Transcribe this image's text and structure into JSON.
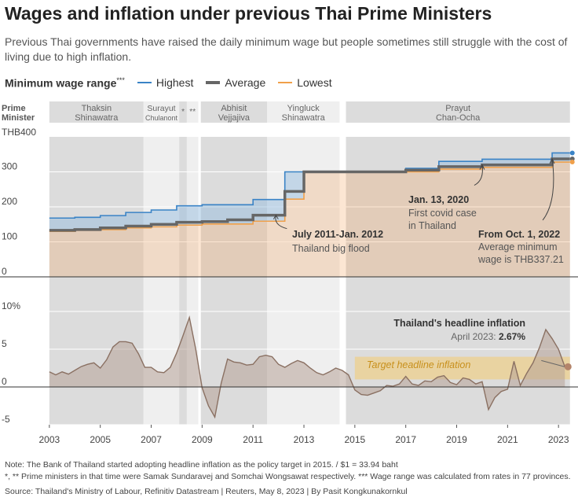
{
  "header": {
    "title": "Wages and inflation under previous Thai Prime Ministers",
    "subtitle": "Previous Thai governments have raised the daily minimum wage but people sometimes still struggle with the cost of living due to high inflation."
  },
  "legend": {
    "title": "Minimum wage range",
    "title_mark": "***",
    "items": [
      {
        "label": "Highest",
        "color": "#3a83c6"
      },
      {
        "label": "Average",
        "color": "#666666"
      },
      {
        "label": "Lowest",
        "color": "#f0a04a"
      }
    ]
  },
  "pm_row": {
    "label_line1": "Prime",
    "label_line2": "Minister",
    "ministers": [
      {
        "line1": "Thaksin",
        "line2": "Shinawatra",
        "start": 2003.0,
        "end": 2006.7
      },
      {
        "line1": "Surayut",
        "line2": "Chulanont",
        "start": 2006.7,
        "end": 2008.1
      },
      {
        "line1": "*",
        "line2": "",
        "start": 2008.1,
        "end": 2008.4
      },
      {
        "line1": "**",
        "line2": "",
        "start": 2008.4,
        "end": 2008.85
      },
      {
        "line1": "Abhisit",
        "line2": "Vejjajiva",
        "start": 2008.95,
        "end": 2011.55
      },
      {
        "line1": "Yingluck",
        "line2": "Shinawatra",
        "start": 2011.55,
        "end": 2014.4
      },
      {
        "line1": "Prayut",
        "line2": "Chan-Ocha",
        "start": 2014.65,
        "end": 2023.45
      }
    ]
  },
  "chart_data": [
    {
      "type": "line",
      "title": "Minimum wage range",
      "ylabel": "THB",
      "y_unit_label": "THB400",
      "ylim": [
        0,
        400
      ],
      "yticks": [
        0,
        100,
        200,
        300
      ],
      "xlim": [
        2002.8,
        2023.6
      ],
      "series": [
        {
          "name": "Highest",
          "color": "#3a83c6",
          "x": [
            2003.0,
            2004.0,
            2005.0,
            2006.0,
            2007.0,
            2008.0,
            2009.0,
            2010.0,
            2011.0,
            2012.25,
            2013.0,
            2016.0,
            2017.0,
            2018.3,
            2020.0,
            2022.75,
            2023.35
          ],
          "y": [
            168,
            170,
            175,
            184,
            191,
            203,
            206,
            206,
            221,
            300,
            300,
            300,
            310,
            330,
            336,
            354,
            354
          ]
        },
        {
          "name": "Average",
          "color": "#666666",
          "x": [
            2003.0,
            2004.0,
            2005.0,
            2006.0,
            2007.0,
            2008.0,
            2009.0,
            2010.0,
            2011.0,
            2012.25,
            2013.0,
            2016.0,
            2017.0,
            2018.3,
            2020.0,
            2022.75,
            2023.35
          ],
          "y": [
            133,
            135,
            140,
            145,
            150,
            156,
            158,
            163,
            176,
            244,
            300,
            300,
            305,
            315,
            320,
            337.21,
            337.21
          ]
        },
        {
          "name": "Lowest",
          "color": "#f0a04a",
          "x": [
            2003.0,
            2004.0,
            2005.0,
            2006.0,
            2007.0,
            2008.0,
            2009.0,
            2010.0,
            2011.0,
            2012.25,
            2013.0,
            2016.0,
            2017.0,
            2018.3,
            2020.0,
            2022.75,
            2023.35
          ],
          "y": [
            130,
            133,
            135,
            140,
            143,
            148,
            151,
            151,
            159,
            222,
            300,
            300,
            300,
            308,
            313,
            328,
            328
          ]
        }
      ],
      "annotations": [
        {
          "bold": "July 2011-Jan. 2012",
          "text": "Thailand big flood",
          "x": 2011.9,
          "y": 176
        },
        {
          "bold": "Jan. 13, 2020",
          "text1": "First covid case",
          "text2": "in Thailand",
          "x": 2020.0,
          "y": 320
        },
        {
          "bold": "From Oct. 1, 2022",
          "text1": "Average minimum",
          "text2": "wage is THB337.21",
          "x": 2022.75,
          "y": 337.21
        }
      ]
    },
    {
      "type": "area",
      "title": "Thailand's headline inflation",
      "ylabel": "%",
      "ylim": [
        -5,
        10
      ],
      "yticks": [
        -5,
        0,
        5,
        10
      ],
      "y_tick_labels": [
        "-5",
        "0",
        "5",
        "10%"
      ],
      "xticks": [
        2003,
        2005,
        2007,
        2009,
        2011,
        2013,
        2015,
        2017,
        2019,
        2021,
        2023
      ],
      "x": [
        2003.0,
        2003.25,
        2003.5,
        2003.75,
        2004.0,
        2004.25,
        2004.5,
        2004.75,
        2005.0,
        2005.25,
        2005.5,
        2005.75,
        2006.0,
        2006.25,
        2006.5,
        2006.75,
        2007.0,
        2007.25,
        2007.5,
        2007.75,
        2008.0,
        2008.25,
        2008.5,
        2008.75,
        2009.0,
        2009.25,
        2009.5,
        2009.75,
        2010.0,
        2010.25,
        2010.5,
        2010.75,
        2011.0,
        2011.25,
        2011.5,
        2011.75,
        2012.0,
        2012.25,
        2012.5,
        2012.75,
        2013.0,
        2013.25,
        2013.5,
        2013.75,
        2014.0,
        2014.25,
        2014.5,
        2014.75,
        2015.0,
        2015.25,
        2015.5,
        2015.75,
        2016.0,
        2016.25,
        2016.5,
        2016.75,
        2017.0,
        2017.25,
        2017.5,
        2017.75,
        2018.0,
        2018.25,
        2018.5,
        2018.75,
        2019.0,
        2019.25,
        2019.5,
        2019.75,
        2020.0,
        2020.25,
        2020.5,
        2020.75,
        2021.0,
        2021.25,
        2021.5,
        2021.75,
        2022.0,
        2022.25,
        2022.5,
        2022.75,
        2023.0,
        2023.25
      ],
      "values": [
        2.0,
        1.6,
        2.0,
        1.7,
        2.2,
        2.7,
        3.0,
        3.2,
        2.5,
        3.6,
        5.3,
        6.0,
        6.0,
        5.8,
        4.4,
        2.6,
        2.6,
        2.0,
        1.9,
        2.6,
        4.5,
        6.8,
        9.2,
        5.0,
        -0.1,
        -2.5,
        -4.0,
        0.5,
        3.7,
        3.3,
        3.2,
        2.9,
        3.0,
        4.0,
        4.2,
        4.0,
        3.0,
        2.6,
        3.1,
        3.5,
        3.2,
        2.5,
        1.9,
        1.6,
        2.0,
        2.5,
        2.2,
        1.6,
        -0.4,
        -1.0,
        -1.1,
        -0.8,
        -0.5,
        0.2,
        0.1,
        0.4,
        1.4,
        0.4,
        0.2,
        0.8,
        0.7,
        1.3,
        1.5,
        0.6,
        0.3,
        1.2,
        1.0,
        0.4,
        0.7,
        -3.0,
        -1.4,
        -0.6,
        -0.3,
        3.4,
        0.2,
        1.8,
        3.2,
        5.2,
        7.6,
        6.4,
        5.0,
        2.67
      ],
      "annotation": {
        "title": "Thailand's headline inflation",
        "text": "April 2023:",
        "value": "2.67%"
      },
      "target_band": {
        "label": "Target headline inflation",
        "from": 2015.0,
        "to": 2023.45,
        "low": 1.0,
        "high": 4.0
      }
    }
  ],
  "footer": {
    "note1": "Note: The Bank of Thailand started adopting headline inflation as the policy target in 2015. / $1 = 33.94 baht",
    "note2": "*, ** Prime ministers in that time were Samak Sundaravej and Somchai Wongsawat respectively.  *** Wage range was calculated from rates in 77 provinces.",
    "source": "Source: Thailand's Ministry of Labour, Refinitiv Datastream | Reuters, May 8, 2023 | By Pasit Kongkunakornkul"
  }
}
